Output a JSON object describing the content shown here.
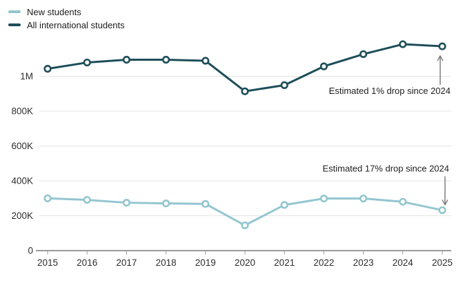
{
  "legend": {
    "items": [
      {
        "label": "New students",
        "color": "#93c6d0"
      },
      {
        "label": "All international students",
        "color": "#1d4e59"
      }
    ]
  },
  "chart_data": {
    "type": "line",
    "x": [
      2015,
      2016,
      2017,
      2018,
      2019,
      2020,
      2021,
      2022,
      2023,
      2024,
      2025
    ],
    "series": [
      {
        "name": "New students",
        "color": "#93c6d0",
        "values_thousands": [
          300,
          291,
          275,
          271,
          268,
          145,
          262,
          299,
          299,
          280,
          232
        ]
      },
      {
        "name": "All international students",
        "color": "#1d4e59",
        "values_thousands": [
          1043,
          1079,
          1095,
          1095,
          1089,
          914,
          949,
          1057,
          1127,
          1184,
          1172
        ]
      }
    ],
    "ylim_thousands": [
      0,
      1250
    ],
    "yticks": [
      {
        "value": 0,
        "label": "0"
      },
      {
        "value": 200,
        "label": "200K"
      },
      {
        "value": 400,
        "label": "400K"
      },
      {
        "value": 600,
        "label": "600K"
      },
      {
        "value": 800,
        "label": "800K"
      },
      {
        "value": 1000,
        "label": "1M"
      }
    ],
    "grid": "horizontal-light",
    "legend_position": "top-left",
    "marker": "open-circle",
    "annotations": [
      {
        "text": "Estimated 1% drop since 2024",
        "series": "All international students",
        "x": 2025,
        "arrow": "up"
      },
      {
        "text": "Estimated 17% drop since 2024",
        "series": "New students",
        "x": 2025,
        "arrow": "down"
      }
    ]
  },
  "colors": {
    "background": "#ffffff",
    "grid": "#e4e4e4",
    "axis": "#9a9a9a",
    "tick_label": "#2e2e2e",
    "annotation_text": "#1c1c1c",
    "arrow": "#747474"
  }
}
